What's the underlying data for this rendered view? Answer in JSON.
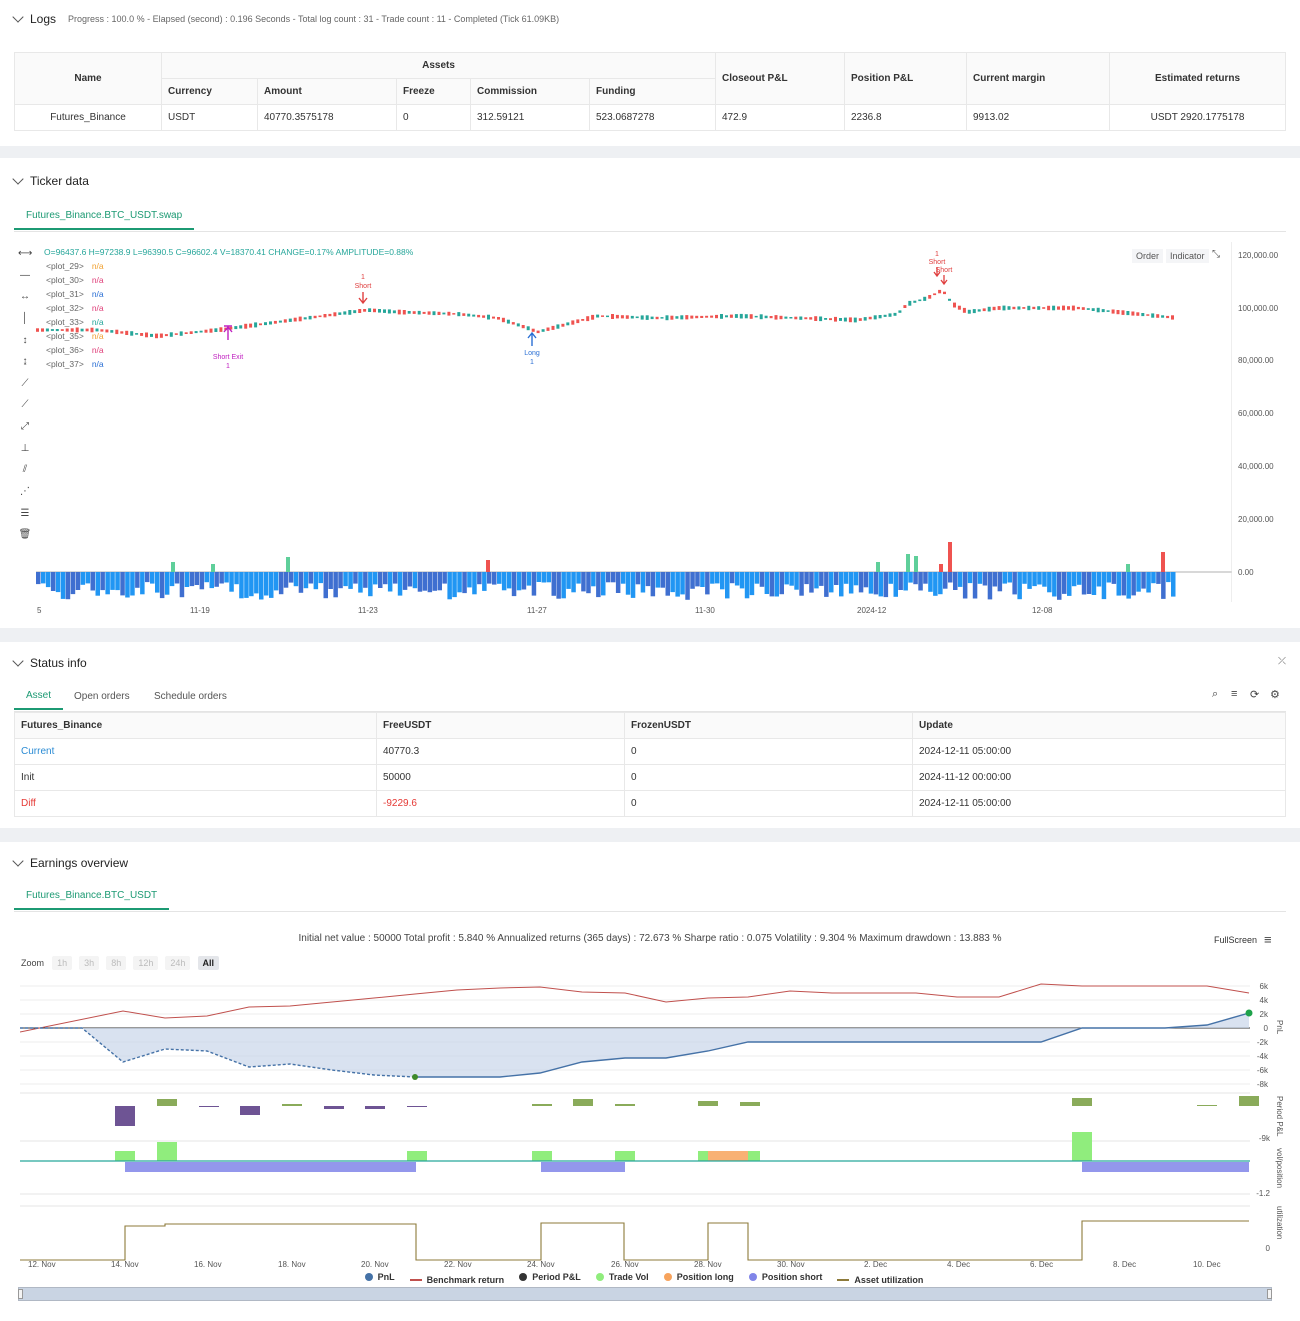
{
  "logs": {
    "title": "Logs",
    "progress": "Progress : 100.0 % - Elapsed (second) : 0.196  Seconds - Total log count : 31 - Trade count : 11 - Completed (Tick 61.09KB)",
    "headers": {
      "name": "Name",
      "assets": "Assets",
      "currency": "Currency",
      "amount": "Amount",
      "freeze": "Freeze",
      "commission": "Commission",
      "funding": "Funding",
      "closeout": "Closeout P&L",
      "position": "Position P&L",
      "margin": "Current margin",
      "returns": "Estimated returns"
    },
    "row": {
      "name": "Futures_Binance",
      "currency": "USDT",
      "amount": "40770.3575178",
      "freeze": "0",
      "commission": "312.59121",
      "funding": "523.0687278",
      "closeout": "472.9",
      "position": "2236.8",
      "margin": "9913.02",
      "returns": "USDT 2920.1775178"
    }
  },
  "ticker": {
    "title": "Ticker data",
    "tab": "Futures_Binance.BTC_USDT.swap",
    "ohlc": "O=96437.6 H=97238.9 L=96390.5 C=96602.4 V=18370.41 CHANGE=0.17% AMPLITUDE=0.88%",
    "plots": [
      {
        "name": "<plot_29>",
        "value": "n/a",
        "color": "#f0a030"
      },
      {
        "name": "<plot_30>",
        "value": "n/a",
        "color": "#e0407a"
      },
      {
        "name": "<plot_31>",
        "value": "n/a",
        "color": "#2a6fd4"
      },
      {
        "name": "<plot_32>",
        "value": "n/a",
        "color": "#e0407a"
      },
      {
        "name": "<plot_33>",
        "value": "n/a",
        "color": "#26a69a"
      },
      {
        "name": "<plot_35>",
        "value": "n/a",
        "color": "#f0a030"
      },
      {
        "name": "<plot_36>",
        "value": "n/a",
        "color": "#e0407a"
      },
      {
        "name": "<plot_37>",
        "value": "n/a",
        "color": "#2a6fd4"
      }
    ],
    "buttons": {
      "order": "Order",
      "indicator": "Indicator"
    },
    "y_axis": [
      "120,000.00",
      "100,000.00",
      "80,000.00",
      "60,000.00",
      "40,000.00",
      "20,000.00",
      "0.00"
    ],
    "x_axis": [
      "5",
      "11-19",
      "11-23",
      "11-27",
      "11-30",
      "2024-12",
      "12-08"
    ],
    "markers": {
      "short1": {
        "count": "1",
        "label": "Short"
      },
      "short_exit": {
        "label": "Short Exit",
        "count": "1"
      },
      "long": {
        "label": "Long",
        "count": "1"
      },
      "short2": {
        "count": "1",
        "label": "Short"
      },
      "short3": {
        "label": "Short"
      }
    }
  },
  "status": {
    "title": "Status info",
    "tabs": [
      "Asset",
      "Open orders",
      "Schedule orders"
    ],
    "headers": [
      "Futures_Binance",
      "FreeUSDT",
      "FrozenUSDT",
      "Update"
    ],
    "rows": [
      {
        "label": "Current",
        "free": "40770.3",
        "frozen": "0",
        "update": "2024-12-11 05:00:00"
      },
      {
        "label": "Init",
        "free": "50000",
        "frozen": "0",
        "update": "2024-11-12 00:00:00"
      },
      {
        "label": "Diff",
        "free": "-9229.6",
        "frozen": "0",
        "update": "2024-12-11 05:00:00"
      }
    ]
  },
  "earnings": {
    "title": "Earnings overview",
    "tab": "Futures_Binance.BTC_USDT",
    "summary": "Initial net value : 50000  Total profit : 5.840 %  Annualized returns (365 days) : 72.673 %  Sharpe ratio : 0.075  Volatility : 9.304 %  Maximum drawdown : 13.883 %",
    "fullscreen": "FullScreen",
    "zoom_label": "Zoom",
    "zoom": [
      "1h",
      "3h",
      "8h",
      "12h",
      "24h",
      "All"
    ],
    "pnl_axis": [
      "6k",
      "4k",
      "2k",
      "0",
      "-2k",
      "-4k",
      "-6k",
      "-8k"
    ],
    "period_axis": [
      "-9k"
    ],
    "vol_axis": [
      "-1.2"
    ],
    "util_axis": [
      "0"
    ],
    "side_labels": [
      "PnL",
      "Period P&L",
      "vol/position",
      "utilization"
    ],
    "x_axis": [
      "12. Nov",
      "14. Nov",
      "16. Nov",
      "18. Nov",
      "20. Nov",
      "22. Nov",
      "24. Nov",
      "26. Nov",
      "28. Nov",
      "30. Nov",
      "2. Dec",
      "4. Dec",
      "6. Dec",
      "8. Dec",
      "10. Dec"
    ],
    "legend": [
      {
        "label": "PnL",
        "color": "#4572a7",
        "kind": "dot"
      },
      {
        "label": "Benchmark return",
        "color": "#c0504d",
        "kind": "line"
      },
      {
        "label": "Period P&L",
        "color": "#333333",
        "kind": "dot"
      },
      {
        "label": "Trade Vol",
        "color": "#90ed7d",
        "kind": "dot"
      },
      {
        "label": "Position long",
        "color": "#f7a35c",
        "kind": "dot"
      },
      {
        "label": "Position short",
        "color": "#8085e9",
        "kind": "dot"
      },
      {
        "label": "Asset utilization",
        "color": "#8d7a3a",
        "kind": "line"
      }
    ]
  },
  "colors": {
    "accent": "#1c9a73",
    "up": "#26a69a",
    "down": "#ef5350",
    "link": "#2a8bd4",
    "diff": "#e53935"
  }
}
